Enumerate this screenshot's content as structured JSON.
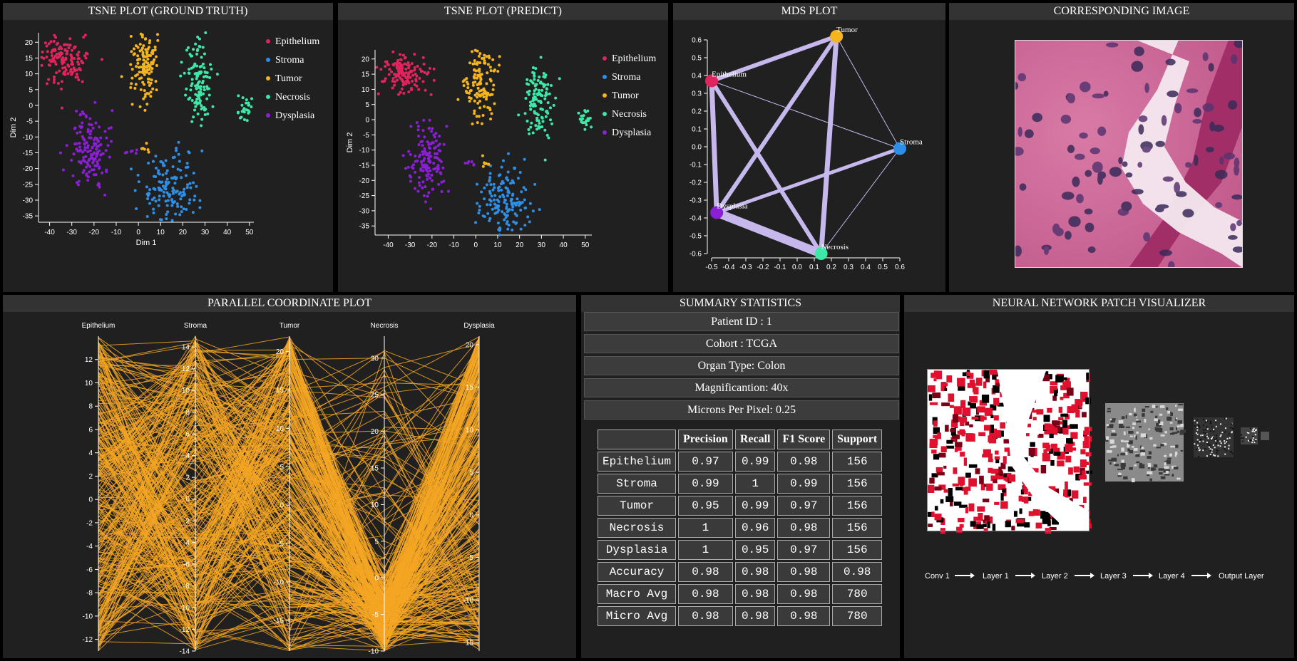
{
  "panels": {
    "tsne_gt_title": "TSNE PLOT (GROUND TRUTH)",
    "tsne_pred_title": "TSNE PLOT (PREDICT)",
    "mds_title": "MDS PLOT",
    "image_title": "CORRESPONDING IMAGE",
    "pcp_title": "PARALLEL COORDINATE PLOT",
    "summary_title": "SUMMARY STATISTICS",
    "nn_title": "NEURAL NETWORK PATCH VISUALIZER"
  },
  "colors": {
    "epithelium": "#e0245e",
    "stroma": "#2e8fe6",
    "tumor": "#f5b51e",
    "necrosis": "#3de8a8",
    "dysplasia": "#8a1fd6",
    "pcp_line": "#f5a623",
    "mds_edge": "#c6b8ec"
  },
  "legend": [
    "Epithelium",
    "Stroma",
    "Tumor",
    "Necrosis",
    "Dysplasia"
  ],
  "chart_data": [
    {
      "type": "scatter",
      "title": "TSNE PLOT (GROUND TRUTH)",
      "xlabel": "Dim 1",
      "ylabel": "Dim 2",
      "xlim": [
        -45,
        52
      ],
      "ylim": [
        -37,
        23
      ],
      "xticks": [
        -40,
        -30,
        -20,
        -10,
        0,
        10,
        20,
        30,
        40,
        50
      ],
      "yticks": [
        20,
        15,
        10,
        5,
        0,
        -5,
        -10,
        -15,
        -20,
        -25,
        -30,
        -35
      ],
      "clusters": [
        {
          "name": "Epithelium",
          "cx": -33,
          "cy": 14.5,
          "sx": 5,
          "sy": 3.5,
          "n": 140
        },
        {
          "name": "Tumor",
          "cx": 2.5,
          "cy": 12,
          "sx": 3.5,
          "sy": 6,
          "n": 130
        },
        {
          "name": "Necrosis",
          "cx": 27,
          "cy": 8,
          "sx": 3,
          "sy": 6,
          "n": 120
        },
        {
          "name": "Necrosis",
          "cx": 48,
          "cy": -1,
          "sx": 2,
          "sy": 2,
          "n": 25
        },
        {
          "name": "Dysplasia",
          "cx": -22,
          "cy": -14,
          "sx": 4,
          "sy": 6,
          "n": 140
        },
        {
          "name": "Stroma",
          "cx": 14,
          "cy": -26,
          "sx": 6,
          "sy": 6,
          "n": 150
        }
      ]
    },
    {
      "type": "scatter",
      "title": "TSNE PLOT (PREDICT)",
      "xlabel": "",
      "ylabel": "Dim 2",
      "xlim": [
        -46,
        53
      ],
      "ylim": [
        -38,
        23
      ],
      "xticks": [
        -40,
        -30,
        -20,
        -10,
        0,
        10,
        20,
        30,
        40,
        50
      ],
      "yticks": [
        20,
        15,
        10,
        5,
        0,
        -5,
        -10,
        -15,
        -20,
        -25,
        -30,
        -35
      ],
      "clusters": [
        {
          "name": "Epithelium",
          "cx": -33,
          "cy": 15,
          "sx": 5,
          "sy": 3.5,
          "n": 140
        },
        {
          "name": "Tumor",
          "cx": 2.5,
          "cy": 12,
          "sx": 3.5,
          "sy": 6,
          "n": 130
        },
        {
          "name": "Necrosis",
          "cx": 29,
          "cy": 7,
          "sx": 3,
          "sy": 6,
          "n": 120
        },
        {
          "name": "Necrosis",
          "cx": 50,
          "cy": 0,
          "sx": 2,
          "sy": 2,
          "n": 25
        },
        {
          "name": "Dysplasia",
          "cx": -22,
          "cy": -14,
          "sx": 4,
          "sy": 6,
          "n": 140
        },
        {
          "name": "Stroma",
          "cx": 13,
          "cy": -26,
          "sx": 6,
          "sy": 6,
          "n": 150
        }
      ]
    },
    {
      "type": "network",
      "title": "MDS PLOT",
      "xlim": [
        -0.5,
        0.6
      ],
      "ylim": [
        -0.6,
        0.6
      ],
      "xticks": [
        -0.5,
        -0.4,
        -0.3,
        -0.2,
        -0.1,
        0.0,
        0.1,
        0.2,
        0.3,
        0.4,
        0.5,
        0.6
      ],
      "yticks": [
        0.6,
        0.5,
        0.4,
        0.3,
        0.2,
        0.1,
        0.0,
        -0.1,
        -0.2,
        -0.3,
        -0.4,
        -0.5,
        -0.6
      ],
      "nodes": [
        {
          "name": "Tumor",
          "x": 0.23,
          "y": 0.62
        },
        {
          "name": "Epithelium",
          "x": -0.5,
          "y": 0.37
        },
        {
          "name": "Stroma",
          "x": 0.6,
          "y": -0.01
        },
        {
          "name": "Dysplasia",
          "x": -0.47,
          "y": -0.37
        },
        {
          "name": "Necrosis",
          "x": 0.14,
          "y": -0.6
        }
      ],
      "edges": [
        {
          "a": 0,
          "b": 1,
          "w": 6
        },
        {
          "a": 0,
          "b": 3,
          "w": 6
        },
        {
          "a": 0,
          "b": 4,
          "w": 7
        },
        {
          "a": 0,
          "b": 2,
          "w": 1
        },
        {
          "a": 1,
          "b": 2,
          "w": 1
        },
        {
          "a": 1,
          "b": 3,
          "w": 7
        },
        {
          "a": 1,
          "b": 4,
          "w": 6
        },
        {
          "a": 3,
          "b": 2,
          "w": 5
        },
        {
          "a": 3,
          "b": 4,
          "w": 12
        },
        {
          "a": 4,
          "b": 2,
          "w": 1
        }
      ]
    },
    {
      "type": "line",
      "title": "PARALLEL COORDINATE PLOT",
      "axes": [
        {
          "name": "Epithelium",
          "min": -13,
          "max": 14,
          "ticks": [
            12,
            10,
            8,
            6,
            4,
            2,
            0,
            -2,
            -4,
            -6,
            -8,
            -10,
            -12
          ]
        },
        {
          "name": "Stroma",
          "min": -14,
          "max": 15,
          "ticks": [
            14,
            12,
            10,
            8,
            6,
            4,
            2,
            0,
            -2,
            -4,
            -6,
            -8,
            -10,
            -12,
            -14
          ]
        },
        {
          "name": "Tumor",
          "min": -19,
          "max": 22,
          "ticks": [
            20,
            15,
            10,
            5,
            0,
            -5,
            -10,
            -15
          ]
        },
        {
          "name": "Necrosis",
          "min": -10,
          "max": 33,
          "ticks": [
            30,
            25,
            20,
            15,
            10,
            5,
            0,
            -5,
            -10
          ]
        },
        {
          "name": "Dysplasia",
          "min": -16,
          "max": 21,
          "ticks": [
            20,
            15,
            10,
            5,
            0,
            -5,
            -10,
            -15
          ]
        }
      ],
      "n_lines": 320
    }
  ],
  "summary": {
    "info": [
      "Patient ID : 1",
      "Cohort : TCGA",
      "Organ Type: Colon",
      "Magnificantion: 40x",
      "Microns Per Pixel: 0.25"
    ],
    "headers": [
      "",
      "Precision",
      "Recall",
      "F1 Score",
      "Support"
    ],
    "rows": [
      [
        "Epithelium",
        "0.97",
        "0.99",
        "0.98",
        "156"
      ],
      [
        "Stroma",
        "0.99",
        "1",
        "0.99",
        "156"
      ],
      [
        "Tumor",
        "0.95",
        "0.99",
        "0.97",
        "156"
      ],
      [
        "Necrosis",
        "1",
        "0.96",
        "0.98",
        "156"
      ],
      [
        "Dysplasia",
        "1",
        "0.95",
        "0.97",
        "156"
      ],
      [
        "Accuracy",
        "0.98",
        "0.98",
        "0.98",
        "0.98"
      ],
      [
        "Macro Avg",
        "0.98",
        "0.98",
        "0.98",
        "780"
      ],
      [
        "Micro Avg",
        "0.98",
        "0.98",
        "0.98",
        "780"
      ]
    ]
  },
  "nn": {
    "layers": [
      "Conv 1",
      "Layer 1",
      "Layer 2",
      "Layer 3",
      "Layer 4",
      "Output Layer"
    ]
  }
}
